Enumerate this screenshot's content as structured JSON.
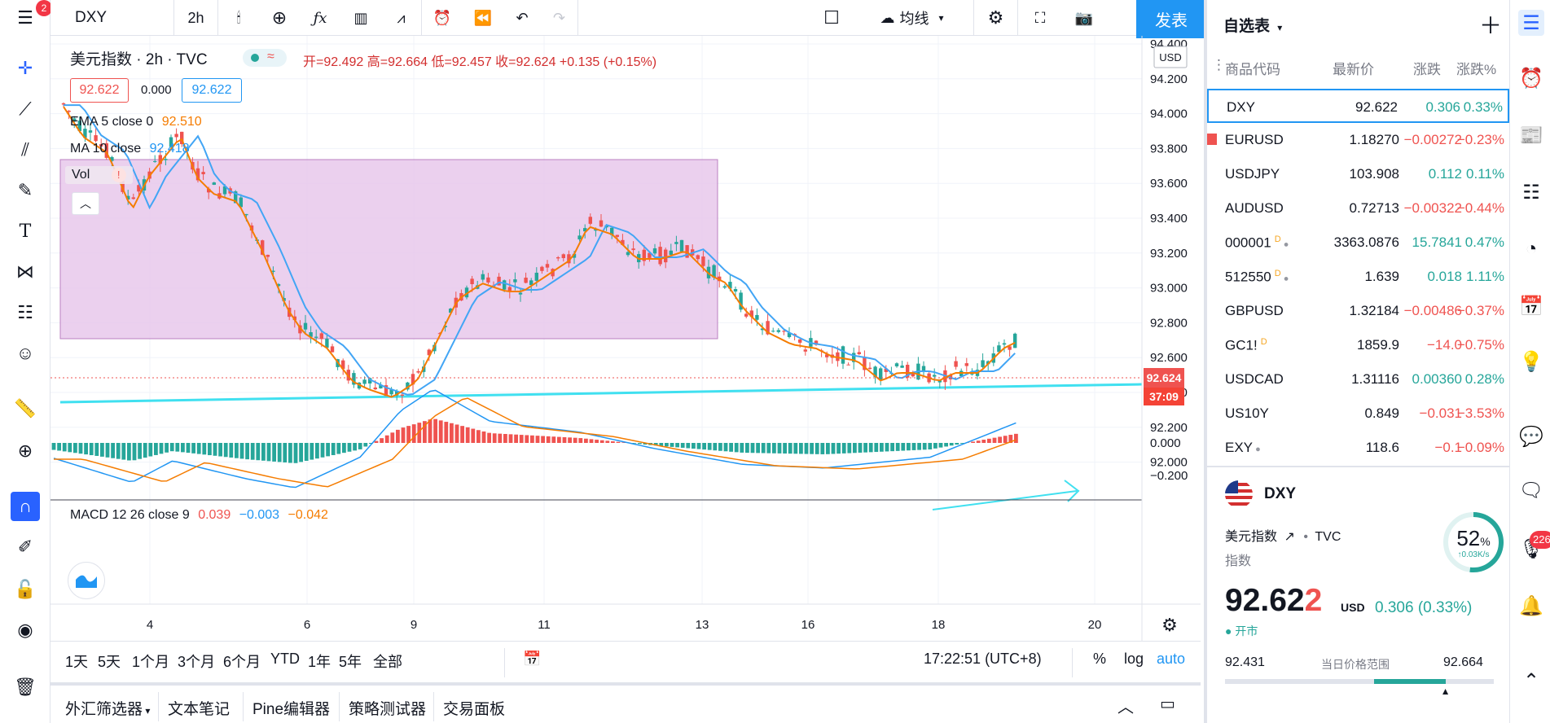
{
  "notification_count": "2",
  "symbol": "DXY",
  "interval": "2h",
  "toolbar": {
    "indicator_btn": "均线",
    "publish": "发表"
  },
  "legend": {
    "title": "美元指数 · 2h · TVC",
    "ohlc": "开=92.492 高=92.664 低=92.457 收=92.624 +0.135 (+0.15%)",
    "bid": "92.622",
    "spread": "0.000",
    "ask": "92.622",
    "ema": "EMA 5 close 0",
    "ema_val": "92.510",
    "ma": "MA 10 close",
    "ma_val": "92.418",
    "vol": "Vol",
    "vol_warn": "!",
    "macd": "MACD 12 26 close 9",
    "macd_v1": "0.039",
    "macd_v2": "−0.003",
    "macd_v3": "−0.042"
  },
  "currency": "USD",
  "price_axis": [
    "94.400",
    "94.200",
    "94.000",
    "93.800",
    "93.600",
    "93.400",
    "93.200",
    "93.000",
    "92.800",
    "92.600",
    "92.400",
    "92.200",
    "92.000"
  ],
  "price_tag": "92.624",
  "timer_tag": "37:09",
  "macd_axis": [
    "0.000",
    "−0.200"
  ],
  "time_axis": [
    "4",
    "6",
    "9",
    "11",
    "13",
    "16",
    "18",
    "20"
  ],
  "range_buttons": [
    "1天",
    "5天",
    "1个月",
    "3个月",
    "6个月",
    "YTD",
    "1年",
    "5年",
    "全部"
  ],
  "clock": "17:22:51 (UTC+8)",
  "scale_buttons": {
    "pct": "%",
    "log": "log",
    "auto": "auto"
  },
  "bottom_tabs": [
    "外汇筛选器",
    "文本笔记",
    "Pine编辑器",
    "策略测试器",
    "交易面板"
  ],
  "watchlist": {
    "title": "自选表",
    "headers": {
      "symbol": "商品代码",
      "last": "最新价",
      "chg": "涨跌",
      "chgp": "涨跌%"
    },
    "rows": [
      {
        "sym": "DXY",
        "last": "92.622",
        "chg": "0.306",
        "chgp": "0.33%",
        "dir": "up",
        "flag": false,
        "d": false,
        "dot": false
      },
      {
        "sym": "EURUSD",
        "last": "1.18270",
        "chg": "−0.00272",
        "chgp": "−0.23%",
        "dir": "down",
        "flag": true,
        "d": false,
        "dot": false
      },
      {
        "sym": "USDJPY",
        "last": "103.908",
        "chg": "0.112",
        "chgp": "0.11%",
        "dir": "up",
        "flag": false,
        "d": false,
        "dot": false
      },
      {
        "sym": "AUDUSD",
        "last": "0.72713",
        "chg": "−0.00322",
        "chgp": "−0.44%",
        "dir": "down",
        "flag": false,
        "d": false,
        "dot": false
      },
      {
        "sym": "000001",
        "last": "3363.0876",
        "chg": "15.7841",
        "chgp": "0.47%",
        "dir": "up",
        "flag": false,
        "d": true,
        "dot": true
      },
      {
        "sym": "512550",
        "last": "1.639",
        "chg": "0.018",
        "chgp": "1.11%",
        "dir": "up",
        "flag": false,
        "d": true,
        "dot": true
      },
      {
        "sym": "GBPUSD",
        "last": "1.32184",
        "chg": "−0.00486",
        "chgp": "−0.37%",
        "dir": "down",
        "flag": false,
        "d": false,
        "dot": false
      },
      {
        "sym": "GC1!",
        "last": "1859.9",
        "chg": "−14.0",
        "chgp": "−0.75%",
        "dir": "down",
        "flag": false,
        "d": true,
        "dot": false
      },
      {
        "sym": "USDCAD",
        "last": "1.31116",
        "chg": "0.00360",
        "chgp": "0.28%",
        "dir": "up",
        "flag": false,
        "d": false,
        "dot": false
      },
      {
        "sym": "US10Y",
        "last": "0.849",
        "chg": "−0.031",
        "chgp": "−3.53%",
        "dir": "down",
        "flag": false,
        "d": false,
        "dot": false
      },
      {
        "sym": "EXY",
        "last": "118.6",
        "chg": "−0.1",
        "chgp": "−0.09%",
        "dir": "down",
        "flag": false,
        "d": false,
        "dot": true
      }
    ]
  },
  "details": {
    "symbol": "DXY",
    "name": "美元指数",
    "exchange": "TVC",
    "type": "指数",
    "price_main": "92.62",
    "price_last": "2",
    "currency": "USD",
    "change": "0.306 (0.33%)",
    "status": "开市",
    "gauge_pct": "52",
    "gauge_unit": "%",
    "gauge_sub": "↑0.03K/s",
    "low": "92.431",
    "range_label": "当日价格范围",
    "high": "92.664",
    "range_fraction": 0.82
  },
  "alerts_badge": "226",
  "colors": {
    "up": "#26a69a",
    "down": "#ef5350",
    "accent": "#2196f3",
    "ema": "#f57c00",
    "ma": "#42a5f5",
    "zone": "#e8c8ec",
    "line": "#40e0f0"
  }
}
